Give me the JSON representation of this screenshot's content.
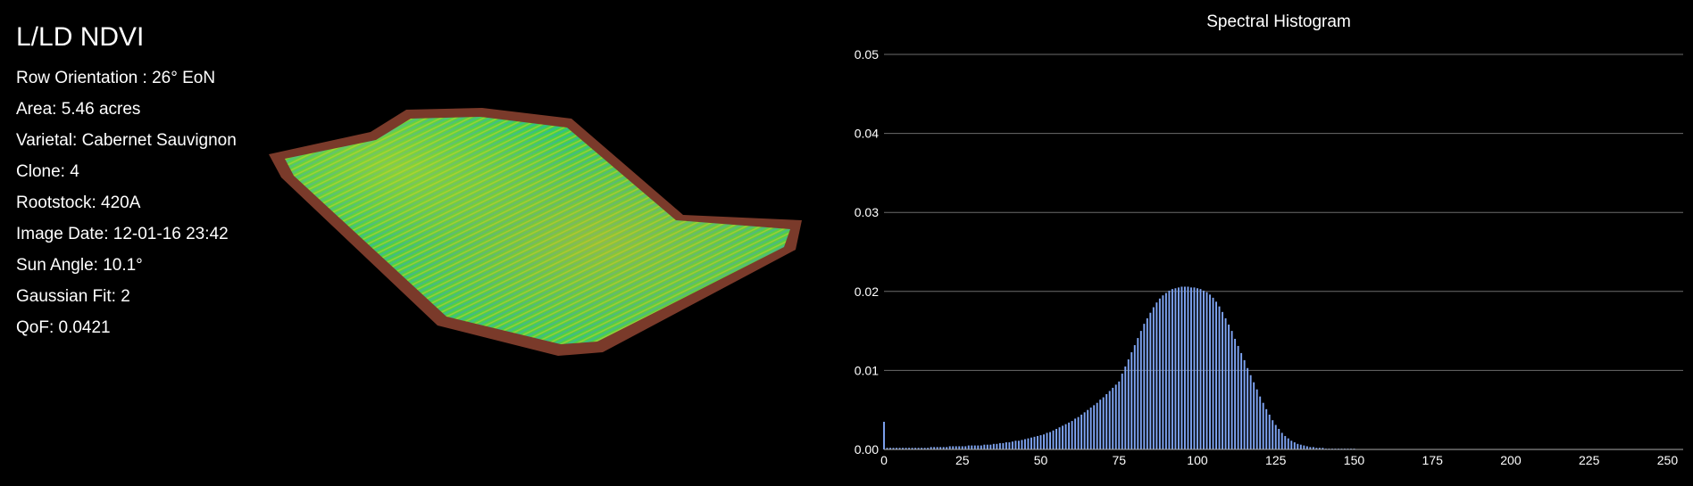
{
  "info": {
    "title": "L/LD NDVI",
    "rows": [
      "Row Orientation : 26° EoN",
      "Area: 5.46 acres",
      "Varietal: Cabernet Sauvignon",
      "Clone: 4",
      "Rootstock: 420A",
      "Image Date: 12-01-16 23:42",
      "Sun Angle: 10.1°",
      "Gaussian Fit: 2",
      "QoF: 0.0421"
    ]
  },
  "colors": {
    "background": "#000000",
    "bar": "#7ea4f2",
    "grid": "#6c6c6c",
    "field_green": "#3fd24a",
    "field_yellow": "#c8d22a",
    "field_cyan": "#2aa8c8",
    "field_border": "#7a3a2a"
  },
  "chart_data": {
    "type": "bar",
    "title": "Spectral Histogram",
    "xlabel": "",
    "ylabel": "",
    "xlim": [
      0,
      255
    ],
    "ylim": [
      0,
      0.05
    ],
    "x_ticks": [
      "0",
      "25",
      "50",
      "75",
      "100",
      "125",
      "150",
      "175",
      "200",
      "225",
      "250"
    ],
    "y_ticks": [
      "0.00",
      "0.01",
      "0.02",
      "0.03",
      "0.04",
      "0.05"
    ],
    "grid": true,
    "series": [
      {
        "x": [
          0,
          1,
          2,
          3,
          4,
          5,
          6,
          7,
          8,
          9,
          10,
          11,
          12,
          13,
          14,
          15,
          16,
          17,
          18,
          19,
          20,
          21,
          22,
          23,
          24,
          25,
          26,
          27,
          28,
          29,
          30,
          31,
          32,
          33,
          34,
          35,
          36,
          37,
          38,
          39,
          40,
          41,
          42,
          43,
          44,
          45,
          46,
          47,
          48,
          49,
          50,
          51,
          52,
          53,
          54,
          55,
          56,
          57,
          58,
          59,
          60,
          61,
          62,
          63,
          64,
          65,
          66,
          67,
          68,
          69,
          70,
          71,
          72,
          73,
          74,
          75,
          76,
          77,
          78,
          79,
          80,
          81,
          82,
          83,
          84,
          85,
          86,
          87,
          88,
          89,
          90,
          91,
          92,
          93,
          94,
          95,
          96,
          97,
          98,
          99,
          100,
          101,
          102,
          103,
          104,
          105,
          106,
          107,
          108,
          109,
          110,
          111,
          112,
          113,
          114,
          115,
          116,
          117,
          118,
          119,
          120,
          121,
          122,
          123,
          124,
          125,
          126,
          127,
          128,
          129,
          130,
          131,
          132,
          133,
          134,
          135,
          136,
          137,
          138,
          139,
          140,
          141,
          142,
          143,
          144,
          145,
          146,
          147,
          148,
          149,
          150
        ],
        "values": [
          0.0035,
          0.0002,
          0.0002,
          0.0002,
          0.0002,
          0.0002,
          0.0002,
          0.0002,
          0.0002,
          0.0002,
          0.0002,
          0.0002,
          0.0002,
          0.0002,
          0.0002,
          0.0003,
          0.0003,
          0.0003,
          0.0003,
          0.0003,
          0.0003,
          0.0004,
          0.0004,
          0.0004,
          0.0004,
          0.0004,
          0.0004,
          0.0005,
          0.0005,
          0.0005,
          0.0005,
          0.0005,
          0.0006,
          0.0006,
          0.0006,
          0.0007,
          0.0007,
          0.0008,
          0.0008,
          0.0009,
          0.0009,
          0.001,
          0.0011,
          0.0011,
          0.0012,
          0.0013,
          0.0014,
          0.0015,
          0.0016,
          0.0017,
          0.0018,
          0.0019,
          0.0021,
          0.0022,
          0.0024,
          0.0026,
          0.0028,
          0.003,
          0.0032,
          0.0034,
          0.0036,
          0.0039,
          0.0041,
          0.0044,
          0.0047,
          0.005,
          0.0053,
          0.0056,
          0.0059,
          0.0063,
          0.0066,
          0.007,
          0.0074,
          0.0078,
          0.0082,
          0.0086,
          0.0096,
          0.0105,
          0.0114,
          0.0123,
          0.0132,
          0.0141,
          0.015,
          0.0159,
          0.0166,
          0.0173,
          0.018,
          0.0186,
          0.0191,
          0.0195,
          0.0198,
          0.0201,
          0.0203,
          0.0204,
          0.0205,
          0.0206,
          0.0206,
          0.0206,
          0.0205,
          0.0205,
          0.0204,
          0.0203,
          0.0201,
          0.0199,
          0.0196,
          0.0192,
          0.0187,
          0.0181,
          0.0174,
          0.0166,
          0.0158,
          0.015,
          0.014,
          0.0131,
          0.0122,
          0.0113,
          0.0103,
          0.0094,
          0.0085,
          0.0076,
          0.0067,
          0.0059,
          0.0051,
          0.0044,
          0.0037,
          0.0031,
          0.0026,
          0.0021,
          0.0017,
          0.0014,
          0.0011,
          0.0009,
          0.0007,
          0.0006,
          0.0005,
          0.0004,
          0.0003,
          0.0003,
          0.0002,
          0.0002,
          0.0002,
          0.0001,
          0.0001,
          0.0001,
          0.0001,
          0.0001,
          0.0001,
          0.0001,
          0.0001,
          0.0001,
          0.0001
        ]
      }
    ]
  }
}
